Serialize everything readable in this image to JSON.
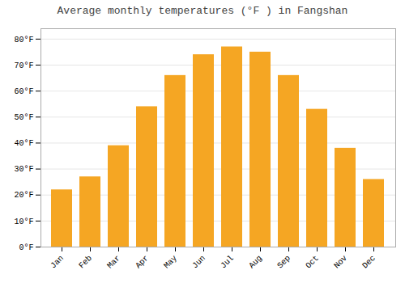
{
  "chart_data": {
    "type": "bar",
    "title": "Average monthly temperatures (°F ) in Fangshan",
    "categories": [
      "Jan",
      "Feb",
      "Mar",
      "Apr",
      "May",
      "Jun",
      "Jul",
      "Aug",
      "Sep",
      "Oct",
      "Nov",
      "Dec"
    ],
    "values": [
      22,
      27,
      39,
      54,
      66,
      74,
      77,
      75,
      66,
      53,
      38,
      26
    ],
    "color": "#F5A623",
    "ylim": [
      0,
      84
    ],
    "yticks": [
      {
        "value": 0,
        "label": "0°F"
      },
      {
        "value": 10,
        "label": "10°F"
      },
      {
        "value": 20,
        "label": "20°F"
      },
      {
        "value": 30,
        "label": "30°F"
      },
      {
        "value": 40,
        "label": "40°F"
      },
      {
        "value": 50,
        "label": "50°F"
      },
      {
        "value": 60,
        "label": "60°F"
      },
      {
        "value": 70,
        "label": "70°F"
      },
      {
        "value": 80,
        "label": "80°F"
      }
    ],
    "grid": true
  }
}
